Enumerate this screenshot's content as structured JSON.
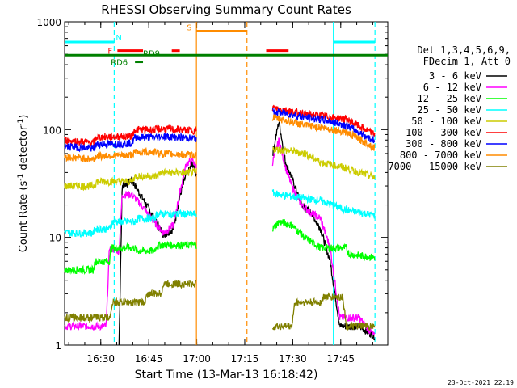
{
  "chart_data": {
    "type": "line",
    "title": "RHESSI Observing Summary Count Rates",
    "xlabel": "Start Time (13-Mar-13 16:18:42)",
    "ylabel_main": "Count Rate (s",
    "ylabel_sup": "-1",
    "ylabel_mid": " detector",
    "ylabel_end": ")",
    "y_scale": "log",
    "ylim": [
      1,
      1000
    ],
    "x_unit": "minutes after 16:18:42",
    "xlim": [
      0,
      101
    ],
    "x_ticks": [
      {
        "x": 11.3,
        "label": "16:30"
      },
      {
        "x": 26.3,
        "label": "16:45"
      },
      {
        "x": 41.3,
        "label": "17:00"
      },
      {
        "x": 56.3,
        "label": "17:15"
      },
      {
        "x": 71.3,
        "label": "17:30"
      },
      {
        "x": 86.3,
        "label": "17:45"
      }
    ],
    "y_ticks": [
      {
        "v": 1,
        "label": "1"
      },
      {
        "v": 10,
        "label": "10"
      },
      {
        "v": 100,
        "label": "100"
      },
      {
        "v": 1000,
        "label": "1000"
      }
    ],
    "legend_header": [
      "Det 1,3,4,5,6,9,",
      "FDecim 1, Att 0"
    ],
    "legend_position": "right",
    "series": [
      {
        "name": "3 - 6 keV",
        "color": "#000000",
        "points": [
          [
            17,
            1
          ],
          [
            18,
            30
          ],
          [
            21,
            34
          ],
          [
            24,
            24
          ],
          [
            27,
            17
          ],
          [
            31,
            10.5
          ],
          [
            34,
            12
          ],
          [
            36,
            24
          ],
          [
            38,
            38
          ],
          [
            40,
            48
          ],
          [
            41.2,
            38
          ]
        ],
        "points2": [
          [
            65,
            60
          ],
          [
            67,
            120
          ],
          [
            69,
            50
          ],
          [
            71,
            36
          ],
          [
            74,
            20
          ],
          [
            77,
            17
          ],
          [
            80,
            12
          ],
          [
            83,
            6
          ],
          [
            86,
            1.5
          ],
          [
            92,
            1.5
          ],
          [
            97,
            1.2
          ]
        ]
      },
      {
        "name": "6 - 12 keV",
        "color": "#ff00ff",
        "points": [
          [
            0,
            1.5
          ],
          [
            13,
            1.5
          ],
          [
            14,
            8
          ],
          [
            17,
            7.5
          ],
          [
            18,
            25
          ],
          [
            21,
            25
          ],
          [
            24,
            20
          ],
          [
            27,
            15
          ],
          [
            31,
            11
          ],
          [
            34,
            13
          ],
          [
            36,
            26
          ],
          [
            38,
            48
          ],
          [
            40,
            52
          ],
          [
            41.2,
            45
          ]
        ],
        "points2": [
          [
            65,
            50
          ],
          [
            67,
            80
          ],
          [
            69,
            45
          ],
          [
            71,
            30
          ],
          [
            74,
            20
          ],
          [
            77,
            17
          ],
          [
            80,
            15
          ],
          [
            83,
            8
          ],
          [
            86,
            1.8
          ],
          [
            92,
            1.8
          ],
          [
            97,
            1.2
          ]
        ]
      },
      {
        "name": "12 - 25 keV",
        "color": "#00ff00",
        "points": [
          [
            0,
            5
          ],
          [
            9,
            5
          ],
          [
            9.5,
            6
          ],
          [
            14,
            6
          ],
          [
            14.5,
            8
          ],
          [
            22,
            8
          ],
          [
            22.5,
            7.5
          ],
          [
            28,
            7.5
          ],
          [
            29,
            8.5
          ],
          [
            41.2,
            8.5
          ]
        ],
        "points2": [
          [
            65,
            12
          ],
          [
            67,
            14
          ],
          [
            71,
            13
          ],
          [
            75,
            10
          ],
          [
            80,
            8
          ],
          [
            88,
            8
          ],
          [
            89,
            7
          ],
          [
            97,
            6.5
          ]
        ]
      },
      {
        "name": "25 - 50 keV",
        "color": "#00ffff",
        "points": [
          [
            0,
            11
          ],
          [
            9,
            11
          ],
          [
            9.5,
            12
          ],
          [
            14,
            12
          ],
          [
            15,
            14
          ],
          [
            22,
            14
          ],
          [
            23,
            15
          ],
          [
            28,
            15
          ],
          [
            29,
            16.5
          ],
          [
            41.2,
            16.5
          ]
        ],
        "points2": [
          [
            65,
            26
          ],
          [
            67,
            25
          ],
          [
            71,
            24
          ],
          [
            80,
            22
          ],
          [
            88,
            18
          ],
          [
            97,
            16
          ]
        ]
      },
      {
        "name": "50 - 100 keV",
        "color": "#cccc00",
        "points": [
          [
            0,
            30
          ],
          [
            9,
            30
          ],
          [
            10,
            33
          ],
          [
            21,
            33
          ],
          [
            22,
            37
          ],
          [
            29,
            37
          ],
          [
            30,
            40
          ],
          [
            41.2,
            40
          ]
        ],
        "points2": [
          [
            65,
            66
          ],
          [
            70,
            64
          ],
          [
            75,
            60
          ],
          [
            80,
            50
          ],
          [
            88,
            44
          ],
          [
            97,
            36
          ]
        ]
      },
      {
        "name": "100 - 300 keV",
        "color": "#ff0000",
        "points": [
          [
            0,
            80
          ],
          [
            9,
            75
          ],
          [
            10,
            85
          ],
          [
            21,
            87
          ],
          [
            22,
            100
          ],
          [
            29,
            100
          ],
          [
            30,
            102
          ],
          [
            41.2,
            98
          ]
        ],
        "points2": [
          [
            65,
            160
          ],
          [
            70,
            150
          ],
          [
            75,
            140
          ],
          [
            80,
            135
          ],
          [
            88,
            125
          ],
          [
            97,
            90
          ]
        ]
      },
      {
        "name": "300 - 800 keV",
        "color": "#0000ff",
        "points": [
          [
            0,
            70
          ],
          [
            9,
            67
          ],
          [
            10,
            73
          ],
          [
            21,
            75
          ],
          [
            22,
            85
          ],
          [
            29,
            85
          ],
          [
            30,
            87
          ],
          [
            41.2,
            83
          ]
        ],
        "points2": [
          [
            65,
            148
          ],
          [
            70,
            140
          ],
          [
            75,
            130
          ],
          [
            80,
            125
          ],
          [
            88,
            110
          ],
          [
            97,
            78
          ]
        ]
      },
      {
        "name": "800 - 7000 keV",
        "color": "#ff8c00",
        "points": [
          [
            0,
            56
          ],
          [
            9,
            53
          ],
          [
            10,
            57
          ],
          [
            21,
            58
          ],
          [
            22,
            62
          ],
          [
            29,
            62
          ],
          [
            30,
            60
          ],
          [
            41.2,
            58
          ]
        ],
        "points2": [
          [
            65,
            130
          ],
          [
            70,
            120
          ],
          [
            75,
            110
          ],
          [
            80,
            105
          ],
          [
            88,
            95
          ],
          [
            97,
            68
          ]
        ]
      },
      {
        "name": "7000 - 15000 keV",
        "color": "#808000",
        "points": [
          [
            0,
            1.8
          ],
          [
            14,
            1.8
          ],
          [
            15,
            2.5
          ],
          [
            25,
            2.5
          ],
          [
            26,
            3
          ],
          [
            30,
            3
          ],
          [
            31,
            3.7
          ],
          [
            41.2,
            3.7
          ]
        ],
        "points2": [
          [
            65,
            1.5
          ],
          [
            71,
            1.5
          ],
          [
            72,
            2.5
          ],
          [
            80,
            2.5
          ],
          [
            81,
            2.8
          ],
          [
            87,
            2.8
          ],
          [
            88,
            1.5
          ],
          [
            97,
            1.5
          ]
        ]
      }
    ],
    "annotations": {
      "flags": [
        {
          "label": "N",
          "color": "#00ffff",
          "segments": [
            [
              0,
              15.5
            ],
            [
              84,
              97
            ]
          ],
          "level": 650
        },
        {
          "label": "F",
          "color": "#ff0000",
          "segments": [
            [
              16.5,
              24.5
            ],
            [
              33.5,
              36
            ],
            [
              63,
              70
            ]
          ],
          "level": 540
        },
        {
          "label": "S",
          "color": "#ff8c00",
          "segments": [
            [
              41.2,
              57
            ]
          ],
          "level": 820
        },
        {
          "label": "RD9",
          "color": "#008000",
          "segments": [
            [
              0,
              101
            ]
          ],
          "level": 490
        },
        {
          "label": "RD6",
          "color": "#008000",
          "segments": [
            [
              22,
              24.5
            ]
          ],
          "level": 425
        }
      ],
      "vlines": [
        {
          "x": 15.5,
          "color": "#00ffff",
          "style": "dashed"
        },
        {
          "x": 41.2,
          "color": "#ff8c00",
          "style": "solid"
        },
        {
          "x": 57,
          "color": "#ff8c00",
          "style": "dashed"
        },
        {
          "x": 84,
          "color": "#00ffff",
          "style": "solid"
        },
        {
          "x": 97,
          "color": "#00ffff",
          "style": "dashed"
        }
      ]
    }
  },
  "footer_date": "23-Oct-2021 22:19"
}
